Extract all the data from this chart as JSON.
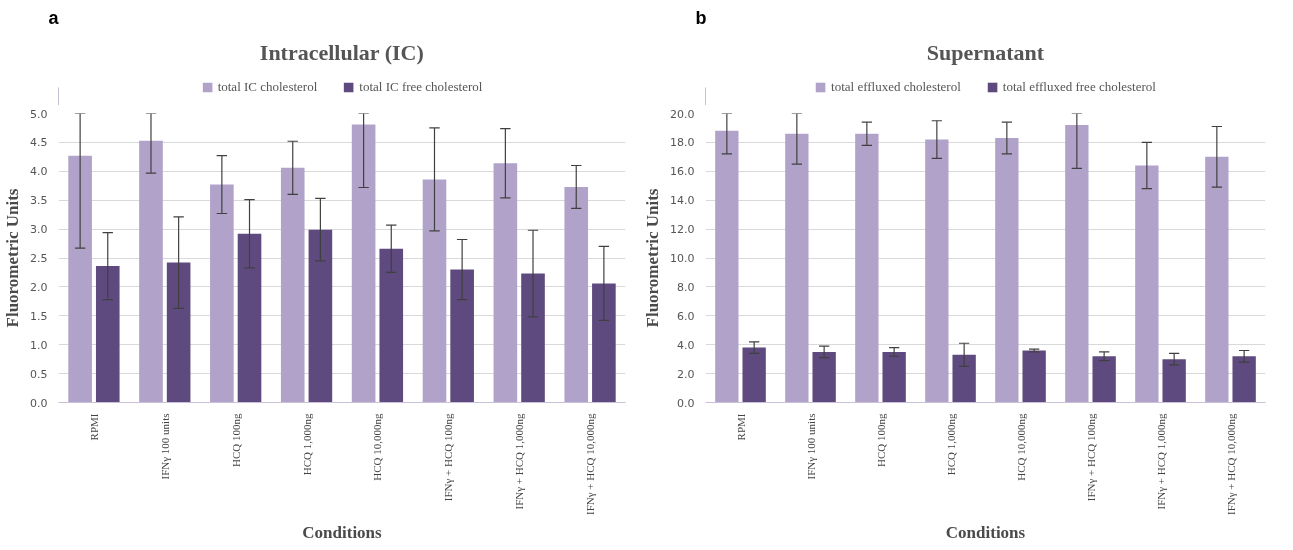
{
  "chart_data": [
    {
      "type": "bar",
      "title": "Intracellular (IC)",
      "annotations": [
        "a"
      ],
      "xlabel": "Conditions",
      "ylabel": "Fluorometric Units",
      "categories": [
        "RPMI",
        "IFNγ 100 units",
        "HCQ 100ng",
        "HCQ 1,000ng",
        "HCQ 10,000ng",
        "IFNγ + HCQ 100ng",
        "IFNγ + HCQ 1,000ng",
        "IFNγ + HCQ 10,000ng"
      ],
      "series": [
        {
          "name": "total IC cholesterol",
          "color": "#b1a2c9",
          "values": [
            4.27,
            4.53,
            3.77,
            4.06,
            4.81,
            3.86,
            4.14,
            3.73
          ],
          "errors": [
            [
              2.67,
              5.0
            ],
            [
              3.97,
              5.0
            ],
            0.5,
            0.46,
            [
              3.72,
              5.0
            ],
            0.89,
            0.6,
            0.37
          ]
        },
        {
          "name": "total IC free cholesterol",
          "color": "#5e4a7e",
          "values": [
            2.36,
            2.42,
            2.92,
            2.99,
            2.66,
            2.3,
            2.23,
            2.06
          ],
          "errors": [
            0.58,
            0.79,
            0.59,
            0.54,
            0.41,
            0.52,
            0.75,
            0.64
          ]
        }
      ],
      "ylim": [
        0,
        5
      ],
      "yticks": [
        {
          "value": 0,
          "label": "0.0"
        },
        {
          "value": 0.5,
          "label": "0.5"
        },
        {
          "value": 1,
          "label": "1.0"
        },
        {
          "value": 1.5,
          "label": "1.5"
        },
        {
          "value": 2,
          "label": "2.0"
        },
        {
          "value": 2.5,
          "label": "2.5"
        },
        {
          "value": 3,
          "label": "3.0"
        },
        {
          "value": 3.5,
          "label": "3.5"
        },
        {
          "value": 4,
          "label": "4.0"
        },
        {
          "value": 4.5,
          "label": "4.5"
        },
        {
          "value": 5,
          "label": "5.0"
        }
      ],
      "grid": "y",
      "legend": "top"
    },
    {
      "type": "bar",
      "title": "Supernatant",
      "annotations": [
        "b"
      ],
      "xlabel": "Conditions",
      "ylabel": "Fluorometric Units",
      "categories": [
        "RPMI",
        "IFNγ 100 units",
        "HCQ 100ng",
        "HCQ 1,000ng",
        "HCQ 10,000ng",
        "IFNγ + HCQ 100ng",
        "IFNγ + HCQ 1,000ng",
        "IFNγ + HCQ 10,000ng"
      ],
      "series": [
        {
          "name": "total effluxed cholesterol",
          "color": "#b1a2c9",
          "values": [
            18.8,
            18.6,
            18.6,
            18.2,
            18.3,
            19.2,
            16.4,
            17.0
          ],
          "errors": [
            [
              17.2,
              20.0
            ],
            [
              16.5,
              20.0
            ],
            0.8,
            1.3,
            1.1,
            [
              16.2,
              20.0
            ],
            1.6,
            2.1
          ]
        },
        {
          "name": "total effluxed free cholesterol",
          "color": "#5e4a7e",
          "values": [
            3.8,
            3.5,
            3.5,
            3.3,
            3.6,
            3.2,
            3.0,
            3.2
          ],
          "errors": [
            0.4,
            0.4,
            0.3,
            0.8,
            0.1,
            0.3,
            0.4,
            0.4
          ]
        }
      ],
      "ylim": [
        0,
        20
      ],
      "yticks": [
        {
          "value": 0,
          "label": "0.0"
        },
        {
          "value": 2,
          "label": "2.0"
        },
        {
          "value": 4,
          "label": "4.0"
        },
        {
          "value": 6,
          "label": "6.0"
        },
        {
          "value": 8,
          "label": "8.0"
        },
        {
          "value": 10,
          "label": "10.0"
        },
        {
          "value": 12,
          "label": "12.0"
        },
        {
          "value": 14,
          "label": "14.0"
        },
        {
          "value": 16,
          "label": "16.0"
        },
        {
          "value": 18,
          "label": "18.0"
        },
        {
          "value": 20,
          "label": "20.0"
        }
      ],
      "grid": "y",
      "legend": "top"
    }
  ]
}
